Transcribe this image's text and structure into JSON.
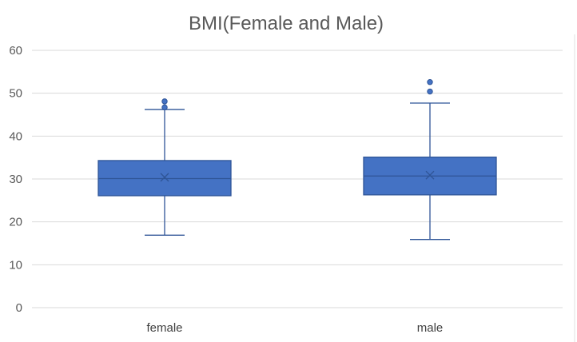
{
  "chart_data": {
    "type": "box",
    "title": "BMI(Female and Male)",
    "xlabel": "",
    "ylabel": "",
    "ylim": [
      0,
      60
    ],
    "yticks": [
      0,
      10,
      20,
      30,
      40,
      50,
      60
    ],
    "grid": true,
    "legend": "none",
    "categories": [
      "female",
      "male"
    ],
    "series": [
      {
        "values": [
          {
            "category": "female",
            "whisker_low": 16.9,
            "q1": 26.1,
            "median": 30.1,
            "q3": 34.3,
            "whisker_high": 46.2,
            "mean": 30.4,
            "outliers": [
              46.7,
              48.1
            ]
          },
          {
            "category": "male",
            "whisker_low": 15.9,
            "q1": 26.3,
            "median": 30.7,
            "q3": 35.1,
            "whisker_high": 47.7,
            "mean": 30.9,
            "outliers": [
              50.4,
              52.6
            ]
          }
        ]
      }
    ],
    "colors": {
      "box_fill": "#4472c4",
      "box_stroke": "#2f5597",
      "whisker": "#2f5597",
      "mean_marker": "#2f5597",
      "outlier": "#4472c4"
    }
  }
}
